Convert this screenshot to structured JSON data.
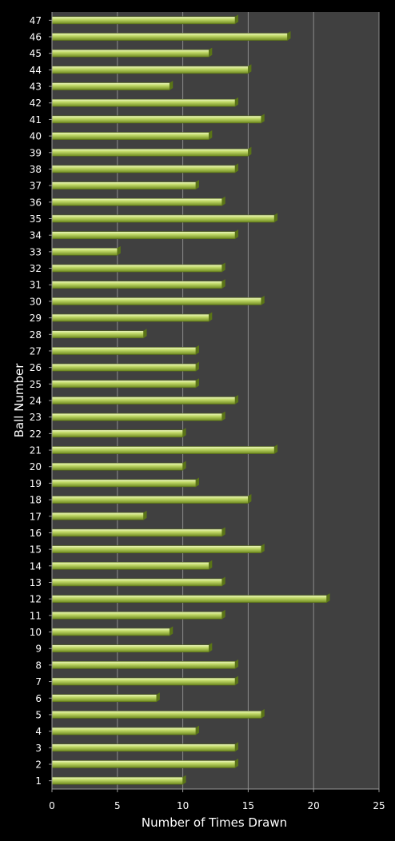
{
  "chart_data": {
    "type": "bar",
    "orientation": "horizontal",
    "xlabel": "Number of Times Drawn",
    "ylabel": "Ball Number",
    "xlim": [
      0,
      25
    ],
    "xticks": [
      0,
      5,
      10,
      15,
      20,
      25
    ],
    "grid": "vertical",
    "bar_color": "#b7d25a",
    "plot_background": "#404040",
    "categories": [
      "1",
      "2",
      "3",
      "4",
      "5",
      "6",
      "7",
      "8",
      "9",
      "10",
      "11",
      "12",
      "13",
      "14",
      "15",
      "16",
      "17",
      "18",
      "19",
      "20",
      "21",
      "22",
      "23",
      "24",
      "25",
      "26",
      "27",
      "28",
      "29",
      "30",
      "31",
      "32",
      "33",
      "34",
      "35",
      "36",
      "37",
      "38",
      "39",
      "40",
      "41",
      "42",
      "43",
      "44",
      "45",
      "46",
      "47"
    ],
    "values": [
      10,
      14,
      14,
      11,
      16,
      8,
      14,
      14,
      12,
      9,
      13,
      21,
      13,
      12,
      16,
      13,
      7,
      15,
      11,
      10,
      17,
      10,
      13,
      14,
      11,
      11,
      11,
      7,
      12,
      16,
      13,
      13,
      5,
      14,
      17,
      13,
      11,
      14,
      15,
      12,
      16,
      14,
      9,
      15,
      12,
      18,
      14
    ]
  }
}
